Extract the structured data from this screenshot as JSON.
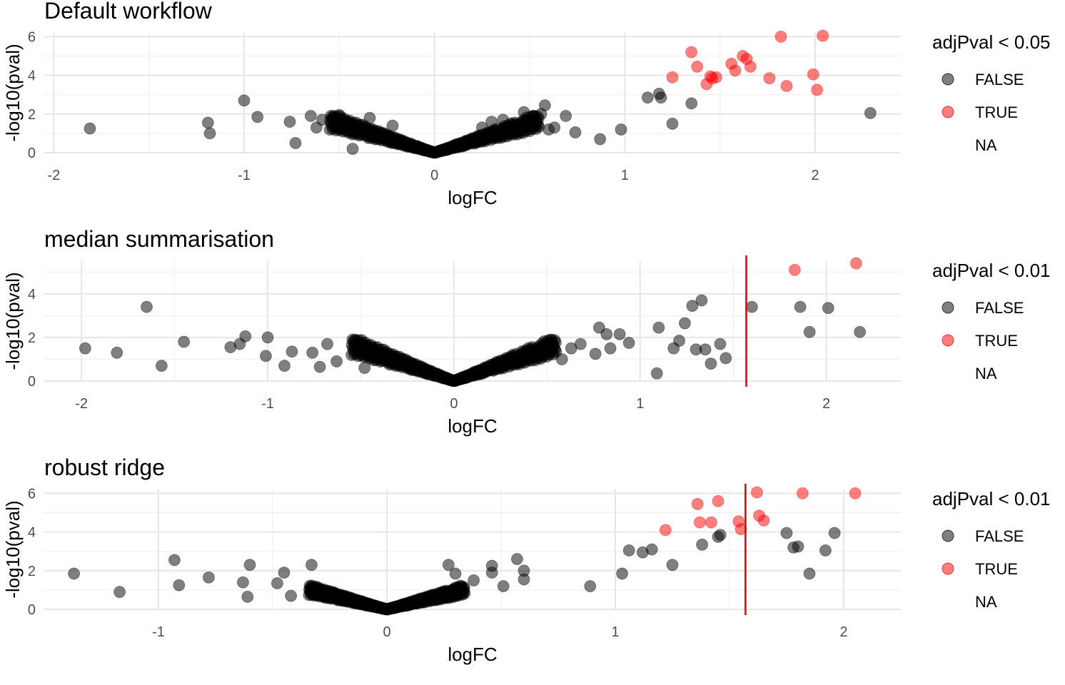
{
  "chart_data": [
    {
      "type": "scatter",
      "title": "Default workflow",
      "xlabel": "logFC",
      "ylabel": "-log10(pval)",
      "xlim": [
        -2.05,
        2.45
      ],
      "ylim": [
        0,
        6.2
      ],
      "xticks": [
        -2,
        -1,
        0,
        1,
        2
      ],
      "yticks": [
        0,
        2,
        4,
        6
      ],
      "grid": true,
      "vline": null,
      "legend": {
        "title": "adjPval < 0.05",
        "position": "right",
        "entries": [
          "FALSE",
          "TRUE",
          "NA"
        ]
      },
      "colors": {
        "FALSE": "#000000",
        "TRUE": "#ff0000"
      },
      "series": [
        {
          "name": "FALSE",
          "points": [
            [
              -1.81,
              1.25
            ],
            [
              -1.19,
              1.55
            ],
            [
              -1.18,
              1.0
            ],
            [
              -1.0,
              2.7
            ],
            [
              -0.93,
              1.85
            ],
            [
              -0.76,
              1.6
            ],
            [
              -0.73,
              0.5
            ],
            [
              -0.65,
              1.9
            ],
            [
              -0.62,
              1.3
            ],
            [
              -0.59,
              1.7
            ],
            [
              -0.5,
              1.95
            ],
            [
              -0.47,
              1.6
            ],
            [
              -0.43,
              0.2
            ],
            [
              -0.34,
              1.8
            ],
            [
              -0.22,
              1.4
            ],
            [
              0.25,
              1.3
            ],
            [
              0.3,
              1.6
            ],
            [
              0.34,
              0.9
            ],
            [
              0.36,
              1.7
            ],
            [
              0.47,
              2.1
            ],
            [
              0.5,
              1.6
            ],
            [
              0.52,
              1.9
            ],
            [
              0.56,
              2.0
            ],
            [
              0.58,
              2.45
            ],
            [
              0.6,
              1.2
            ],
            [
              0.63,
              1.3
            ],
            [
              0.69,
              1.9
            ],
            [
              0.74,
              1.05
            ],
            [
              0.87,
              0.7
            ],
            [
              0.98,
              1.2
            ],
            [
              1.12,
              2.85
            ],
            [
              1.18,
              3.05
            ],
            [
              1.19,
              2.85
            ],
            [
              1.25,
              1.5
            ],
            [
              1.35,
              2.55
            ],
            [
              2.29,
              2.05
            ]
          ]
        },
        {
          "name": "TRUE",
          "points": [
            [
              1.25,
              3.9
            ],
            [
              1.35,
              5.2
            ],
            [
              1.38,
              4.45
            ],
            [
              1.43,
              3.55
            ],
            [
              1.45,
              3.95
            ],
            [
              1.46,
              3.85
            ],
            [
              1.48,
              3.9
            ],
            [
              1.56,
              4.6
            ],
            [
              1.58,
              4.25
            ],
            [
              1.62,
              5.0
            ],
            [
              1.64,
              4.85
            ],
            [
              1.66,
              4.45
            ],
            [
              1.76,
              3.85
            ],
            [
              1.82,
              6.0
            ],
            [
              1.85,
              3.45
            ],
            [
              1.99,
              4.05
            ],
            [
              2.01,
              3.25
            ],
            [
              2.04,
              6.05
            ]
          ]
        }
      ]
    },
    {
      "type": "scatter",
      "title": "median summarisation",
      "xlabel": "logFC",
      "ylabel": "-log10(pval)",
      "xlim": [
        -2.2,
        2.4
      ],
      "ylim": [
        0,
        5.5
      ],
      "xticks": [
        -2,
        -1,
        0,
        1,
        2
      ],
      "yticks": [
        0,
        2,
        4
      ],
      "grid": true,
      "vline": 1.57,
      "legend": {
        "title": "adjPval < 0.01",
        "position": "right",
        "entries": [
          "FALSE",
          "TRUE",
          "NA"
        ]
      },
      "colors": {
        "FALSE": "#000000",
        "TRUE": "#ff0000"
      },
      "series": [
        {
          "name": "FALSE",
          "points": [
            [
              -1.98,
              1.5
            ],
            [
              -1.81,
              1.3
            ],
            [
              -1.65,
              3.4
            ],
            [
              -1.57,
              0.7
            ],
            [
              -1.45,
              1.8
            ],
            [
              -1.2,
              1.55
            ],
            [
              -1.15,
              1.7
            ],
            [
              -1.12,
              2.05
            ],
            [
              -1.0,
              2.0
            ],
            [
              -1.01,
              1.15
            ],
            [
              -0.91,
              0.7
            ],
            [
              -0.87,
              1.35
            ],
            [
              -0.76,
              1.3
            ],
            [
              -0.72,
              0.65
            ],
            [
              -0.68,
              1.7
            ],
            [
              -0.63,
              0.9
            ],
            [
              -0.48,
              0.6
            ],
            [
              -0.4,
              1.1
            ],
            [
              0.34,
              0.85
            ],
            [
              0.42,
              1.2
            ],
            [
              0.48,
              1.35
            ],
            [
              0.53,
              1.7
            ],
            [
              0.58,
              1.0
            ],
            [
              0.63,
              1.5
            ],
            [
              0.68,
              1.7
            ],
            [
              0.76,
              1.25
            ],
            [
              0.78,
              2.45
            ],
            [
              0.82,
              2.15
            ],
            [
              0.84,
              1.5
            ],
            [
              0.89,
              2.15
            ],
            [
              0.94,
              1.75
            ],
            [
              1.09,
              0.35
            ],
            [
              1.1,
              2.45
            ],
            [
              1.18,
              1.5
            ],
            [
              1.21,
              1.85
            ],
            [
              1.24,
              2.65
            ],
            [
              1.3,
              1.45
            ],
            [
              1.35,
              1.45
            ],
            [
              1.28,
              3.45
            ],
            [
              1.33,
              3.7
            ],
            [
              1.38,
              0.8
            ],
            [
              1.43,
              1.7
            ],
            [
              1.46,
              1.05
            ],
            [
              1.6,
              3.4
            ],
            [
              1.86,
              3.4
            ],
            [
              1.91,
              2.25
            ],
            [
              2.01,
              3.35
            ],
            [
              2.18,
              2.25
            ]
          ]
        },
        {
          "name": "TRUE",
          "points": [
            [
              1.83,
              5.1
            ],
            [
              2.16,
              5.4
            ]
          ]
        }
      ]
    },
    {
      "type": "scatter",
      "title": "robust ridge",
      "xlabel": "logFC",
      "ylabel": "-log10(pval)",
      "xlim": [
        -1.5,
        2.25
      ],
      "ylim": [
        0,
        6.2
      ],
      "xticks": [
        -1,
        0,
        1,
        2
      ],
      "yticks": [
        0,
        2,
        4,
        6
      ],
      "grid": true,
      "vline": 1.57,
      "legend": {
        "title": "adjPval < 0.01",
        "position": "right",
        "entries": [
          "FALSE",
          "TRUE",
          "NA"
        ]
      },
      "colors": {
        "FALSE": "#000000",
        "TRUE": "#ff0000"
      },
      "series": [
        {
          "name": "FALSE",
          "points": [
            [
              -1.37,
              1.85
            ],
            [
              -1.17,
              0.9
            ],
            [
              -0.93,
              2.55
            ],
            [
              -0.91,
              1.25
            ],
            [
              -0.78,
              1.65
            ],
            [
              -0.63,
              1.4
            ],
            [
              -0.6,
              2.3
            ],
            [
              -0.61,
              0.65
            ],
            [
              -0.48,
              1.35
            ],
            [
              -0.45,
              1.9
            ],
            [
              -0.42,
              0.7
            ],
            [
              -0.33,
              2.3
            ],
            [
              0.27,
              2.3
            ],
            [
              0.3,
              1.85
            ],
            [
              0.38,
              1.5
            ],
            [
              0.46,
              2.25
            ],
            [
              0.46,
              1.9
            ],
            [
              0.51,
              1.2
            ],
            [
              0.57,
              2.6
            ],
            [
              0.6,
              2.0
            ],
            [
              0.6,
              1.55
            ],
            [
              0.89,
              1.2
            ],
            [
              1.03,
              1.85
            ],
            [
              1.06,
              3.05
            ],
            [
              1.12,
              2.95
            ],
            [
              1.16,
              3.1
            ],
            [
              1.25,
              2.3
            ],
            [
              1.38,
              3.35
            ],
            [
              1.45,
              3.75
            ],
            [
              1.46,
              3.85
            ],
            [
              1.75,
              3.95
            ],
            [
              1.78,
              3.2
            ],
            [
              1.8,
              3.25
            ],
            [
              1.85,
              1.85
            ],
            [
              1.92,
              3.05
            ],
            [
              1.96,
              3.95
            ]
          ]
        },
        {
          "name": "TRUE",
          "points": [
            [
              1.22,
              4.1
            ],
            [
              1.36,
              5.45
            ],
            [
              1.37,
              4.5
            ],
            [
              1.42,
              4.5
            ],
            [
              1.45,
              5.6
            ],
            [
              1.54,
              4.55
            ],
            [
              1.55,
              4.15
            ],
            [
              1.62,
              6.05
            ],
            [
              1.63,
              4.85
            ],
            [
              1.65,
              4.6
            ],
            [
              1.82,
              6.0
            ],
            [
              2.05,
              6.0
            ]
          ]
        }
      ]
    }
  ]
}
